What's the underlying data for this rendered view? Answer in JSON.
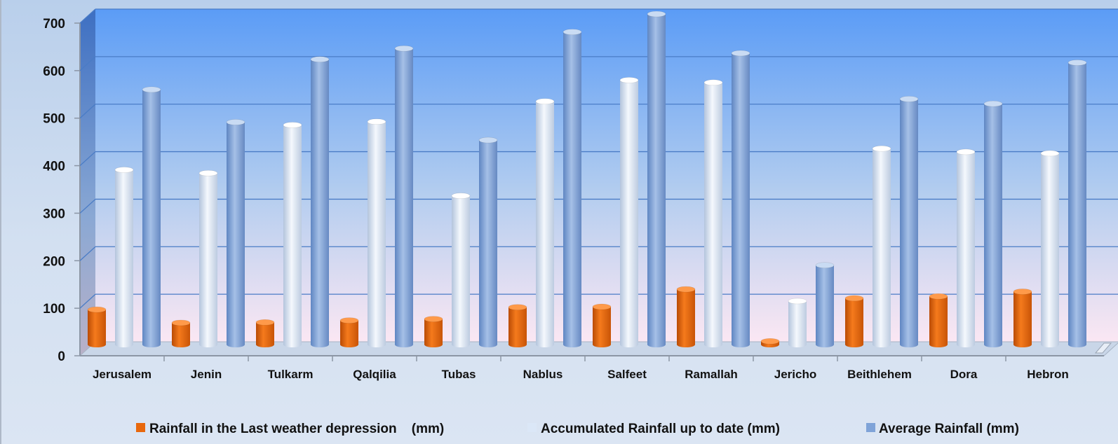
{
  "chart_data": {
    "type": "bar",
    "title": "",
    "xlabel": "",
    "ylabel": "",
    "ylim": [
      0,
      700
    ],
    "yticks": [
      0,
      100,
      200,
      300,
      400,
      500,
      600,
      700
    ],
    "grid": true,
    "legend_position": "bottom",
    "categories": [
      "Jerusalem",
      "Jenin",
      "Tulkarm",
      "Qalqilia",
      "Tubas",
      "Nablus",
      "Salfeet",
      "Ramallah",
      "Jericho",
      "Beithlehem",
      "Dora",
      "Hebron"
    ],
    "series": [
      {
        "name": "Rainfall in the Last weather depression    (mm)",
        "color": "#e8680d",
        "values": [
          74,
          46,
          47,
          51,
          54,
          79,
          80,
          117,
          7,
          98,
          102,
          112
        ]
      },
      {
        "name": "Accumulated Rainfall up to date (mm)",
        "color": "#dbe7f7",
        "values": [
          370,
          363,
          465,
          472,
          315,
          515,
          560,
          555,
          92,
          415,
          408,
          405
        ]
      },
      {
        "name": "Average Rainfall (mm)",
        "color": "#7fa3d8",
        "values": [
          540,
          471,
          604,
          627,
          433,
          662,
          700,
          617,
          168,
          520,
          510,
          597
        ]
      }
    ]
  }
}
